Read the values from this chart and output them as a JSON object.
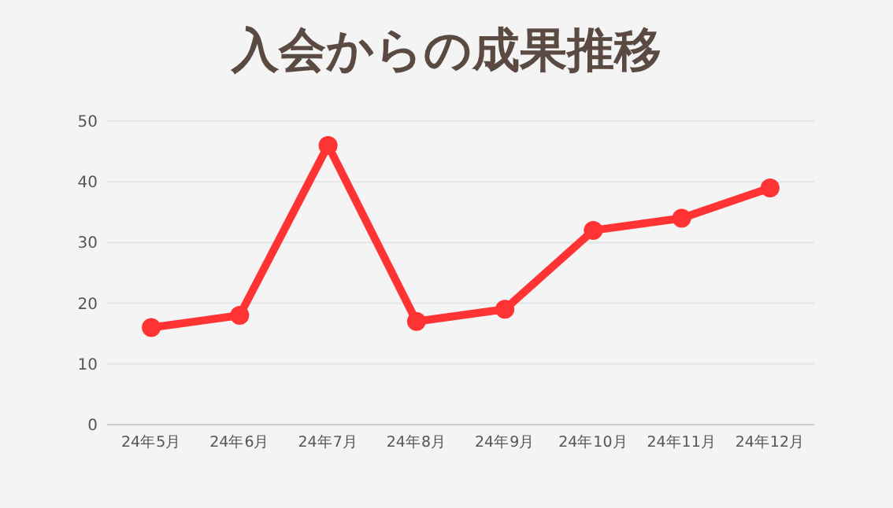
{
  "chart_data": {
    "type": "line",
    "title": "入会からの成果推移",
    "categories": [
      "24年5月",
      "24年6月",
      "24年7月",
      "24年8月",
      "24年9月",
      "24年10月",
      "24年11月",
      "24年12月"
    ],
    "series": [
      {
        "color": "#ff3333",
        "values": [
          16,
          18,
          46,
          17,
          19,
          32,
          34,
          39
        ]
      }
    ],
    "ylim": [
      0,
      50
    ],
    "yticks": [
      0,
      10,
      20,
      30,
      40,
      50
    ],
    "grid": "y",
    "marker": "circle",
    "line_style": "solid"
  }
}
